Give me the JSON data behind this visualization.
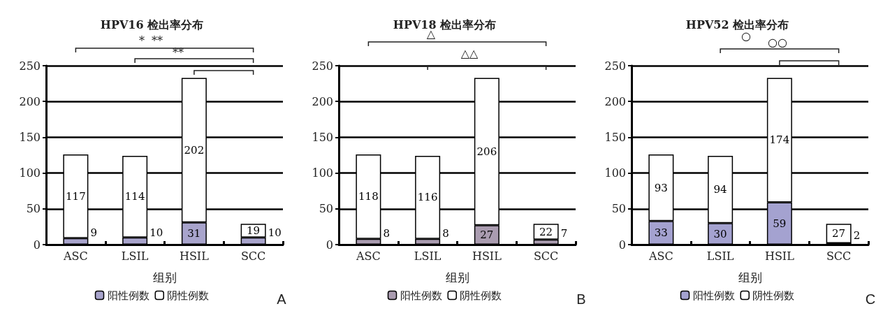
{
  "chart_data": [
    {
      "type": "bar",
      "stacked": true,
      "title": "HPV16 检出率分布",
      "xlabel": "组别",
      "categories": [
        "ASC",
        "LSIL",
        "HSIL",
        "SCC"
      ],
      "series": [
        {
          "name": "阳性例数",
          "color": "#a8a4cc",
          "values": [
            9,
            10,
            31,
            10
          ]
        },
        {
          "name": "阴性例数",
          "color": "#ffffff",
          "values": [
            117,
            114,
            202,
            19
          ]
        }
      ],
      "ylim": [
        0,
        250
      ],
      "yticks": [
        0,
        50,
        100,
        150,
        200,
        250
      ],
      "grid": "y",
      "legend": "bottom",
      "data_labels": true,
      "annotations": [
        "*  **",
        "**",
        "A"
      ]
    },
    {
      "type": "bar",
      "stacked": true,
      "title": "HPV18 检出率分布",
      "xlabel": "组别",
      "categories": [
        "ASC",
        "LSIL",
        "HSIL",
        "SCC"
      ],
      "series": [
        {
          "name": "阳性例数",
          "color": "#aa9cb0",
          "values": [
            8,
            8,
            27,
            7
          ]
        },
        {
          "name": "阴性例数",
          "color": "#ffffff",
          "values": [
            118,
            116,
            206,
            22
          ]
        }
      ],
      "ylim": [
        0,
        250
      ],
      "yticks": [
        0,
        50,
        100,
        150,
        200,
        250
      ],
      "grid": "y",
      "legend": "bottom",
      "data_labels": true,
      "annotations": [
        "△",
        "△△",
        "B"
      ]
    },
    {
      "type": "bar",
      "stacked": true,
      "title": "HPV52 检出率分布",
      "xlabel": "组别",
      "categories": [
        "ASC",
        "LSIL",
        "HSIL",
        "SCC"
      ],
      "series": [
        {
          "name": "阳性例数",
          "color": "#a4a2d0",
          "values": [
            33,
            30,
            59,
            2
          ]
        },
        {
          "name": "阴性例数",
          "color": "#ffffff",
          "values": [
            93,
            94,
            174,
            27
          ]
        }
      ],
      "ylim": [
        0,
        250
      ],
      "yticks": [
        0,
        50,
        100,
        150,
        200,
        250
      ],
      "grid": "y",
      "legend": "bottom",
      "data_labels": true,
      "annotations": [
        "○",
        "○○",
        "C"
      ]
    }
  ]
}
